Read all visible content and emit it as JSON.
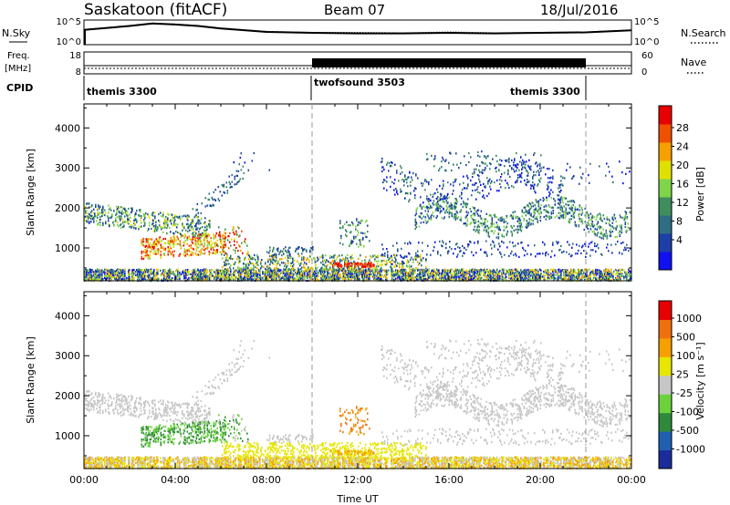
{
  "header": {
    "site_title": "Saskatoon (fitACF)",
    "beam_label": "Beam 07",
    "date_label": "18/Jul/2016"
  },
  "noise_panel": {
    "left_label": "N.Sky",
    "left_ticks": [
      "10^5",
      "10^0"
    ],
    "right_ticks": [
      "10^5",
      "10^0"
    ],
    "right_label": "N.Search"
  },
  "freq_panel": {
    "left_label_1": "Freq.",
    "left_label_2": "[MHz]",
    "left_ticks": [
      "18",
      "8"
    ],
    "right_ticks": [
      "60",
      "0"
    ],
    "right_label": "Nave"
  },
  "cpid_panel": {
    "label": "CPID",
    "segments": [
      "themis 3300",
      "twofsound 3503",
      "themis 3300"
    ]
  },
  "colors": {
    "power_scale": [
      "#1010f0",
      "#1c3fa8",
      "#2e6e82",
      "#3e8e5e",
      "#7fd44a",
      "#e0e000",
      "#f5a000",
      "#f05000",
      "#e80000"
    ],
    "velocity_scale": [
      "#1a2c9a",
      "#1f5fb0",
      "#2e8a3a",
      "#6cd23c",
      "#c6c6c6",
      "#e6e600",
      "#f5a000",
      "#f07010",
      "#e80000"
    ]
  },
  "chart_data": [
    {
      "type": "line",
      "name": "noise",
      "x": [
        "00:00",
        "02:00",
        "03:00",
        "04:00",
        "05:00",
        "06:00",
        "08:00",
        "10:00",
        "12:00",
        "14:00",
        "16:00",
        "18:00",
        "20:00",
        "22:00",
        "24:00"
      ],
      "series": [
        {
          "name": "N.Sky",
          "values": [
            3.0,
            3.8,
            4.3,
            4.1,
            3.8,
            3.3,
            2.6,
            2.4,
            2.3,
            2.3,
            2.4,
            2.3,
            2.4,
            2.5,
            2.9
          ]
        },
        {
          "name": "N.Search",
          "values": [
            3.1,
            3.9,
            4.4,
            4.2,
            3.9,
            3.4,
            2.7,
            2.5,
            2.5,
            2.4,
            2.6,
            2.4,
            2.5,
            2.6,
            3.0
          ]
        }
      ],
      "ylim": [
        0,
        5
      ]
    },
    {
      "type": "line",
      "name": "frequency",
      "x": [
        "00:00",
        "10:00",
        "22:00",
        "24:00"
      ],
      "series": [
        {
          "name": "Freq. [MHz]",
          "values": [
            10.5,
            10.5,
            10.5,
            10.5
          ]
        },
        {
          "name": "Nave",
          "values": [
            10,
            10,
            10,
            10
          ]
        }
      ],
      "ylim": [
        8,
        18
      ]
    },
    {
      "type": "heatmap",
      "name": "power",
      "xlabel": "",
      "ylabel": "Slant Range [km]",
      "x_ticks": [
        "00:00",
        "04:00",
        "08:00",
        "12:00",
        "16:00",
        "20:00",
        "00:00"
      ],
      "y_ticks": [
        1000,
        2000,
        3000,
        4000
      ],
      "xlim_hours": [
        0,
        24
      ],
      "ylim": [
        180,
        4600
      ],
      "colorbar_label": "Power [dB]",
      "colorbar_ticks": [
        "28",
        "24",
        "20",
        "16",
        "12",
        "8",
        "4"
      ],
      "colorbar_range": [
        0,
        30
      ]
    },
    {
      "type": "heatmap",
      "name": "velocity",
      "xlabel": "Time UT",
      "ylabel": "Slant Range [km]",
      "x_ticks": [
        "00:00",
        "04:00",
        "08:00",
        "12:00",
        "16:00",
        "20:00",
        "00:00"
      ],
      "y_ticks": [
        1000,
        2000,
        3000,
        4000
      ],
      "xlim_hours": [
        0,
        24
      ],
      "ylim": [
        180,
        4600
      ],
      "colorbar_label": "Velocity [m s⁻¹]",
      "colorbar_ticks": [
        "1000",
        "500",
        "100",
        "25",
        "-25",
        "-100",
        "-500",
        "-1000"
      ]
    }
  ]
}
